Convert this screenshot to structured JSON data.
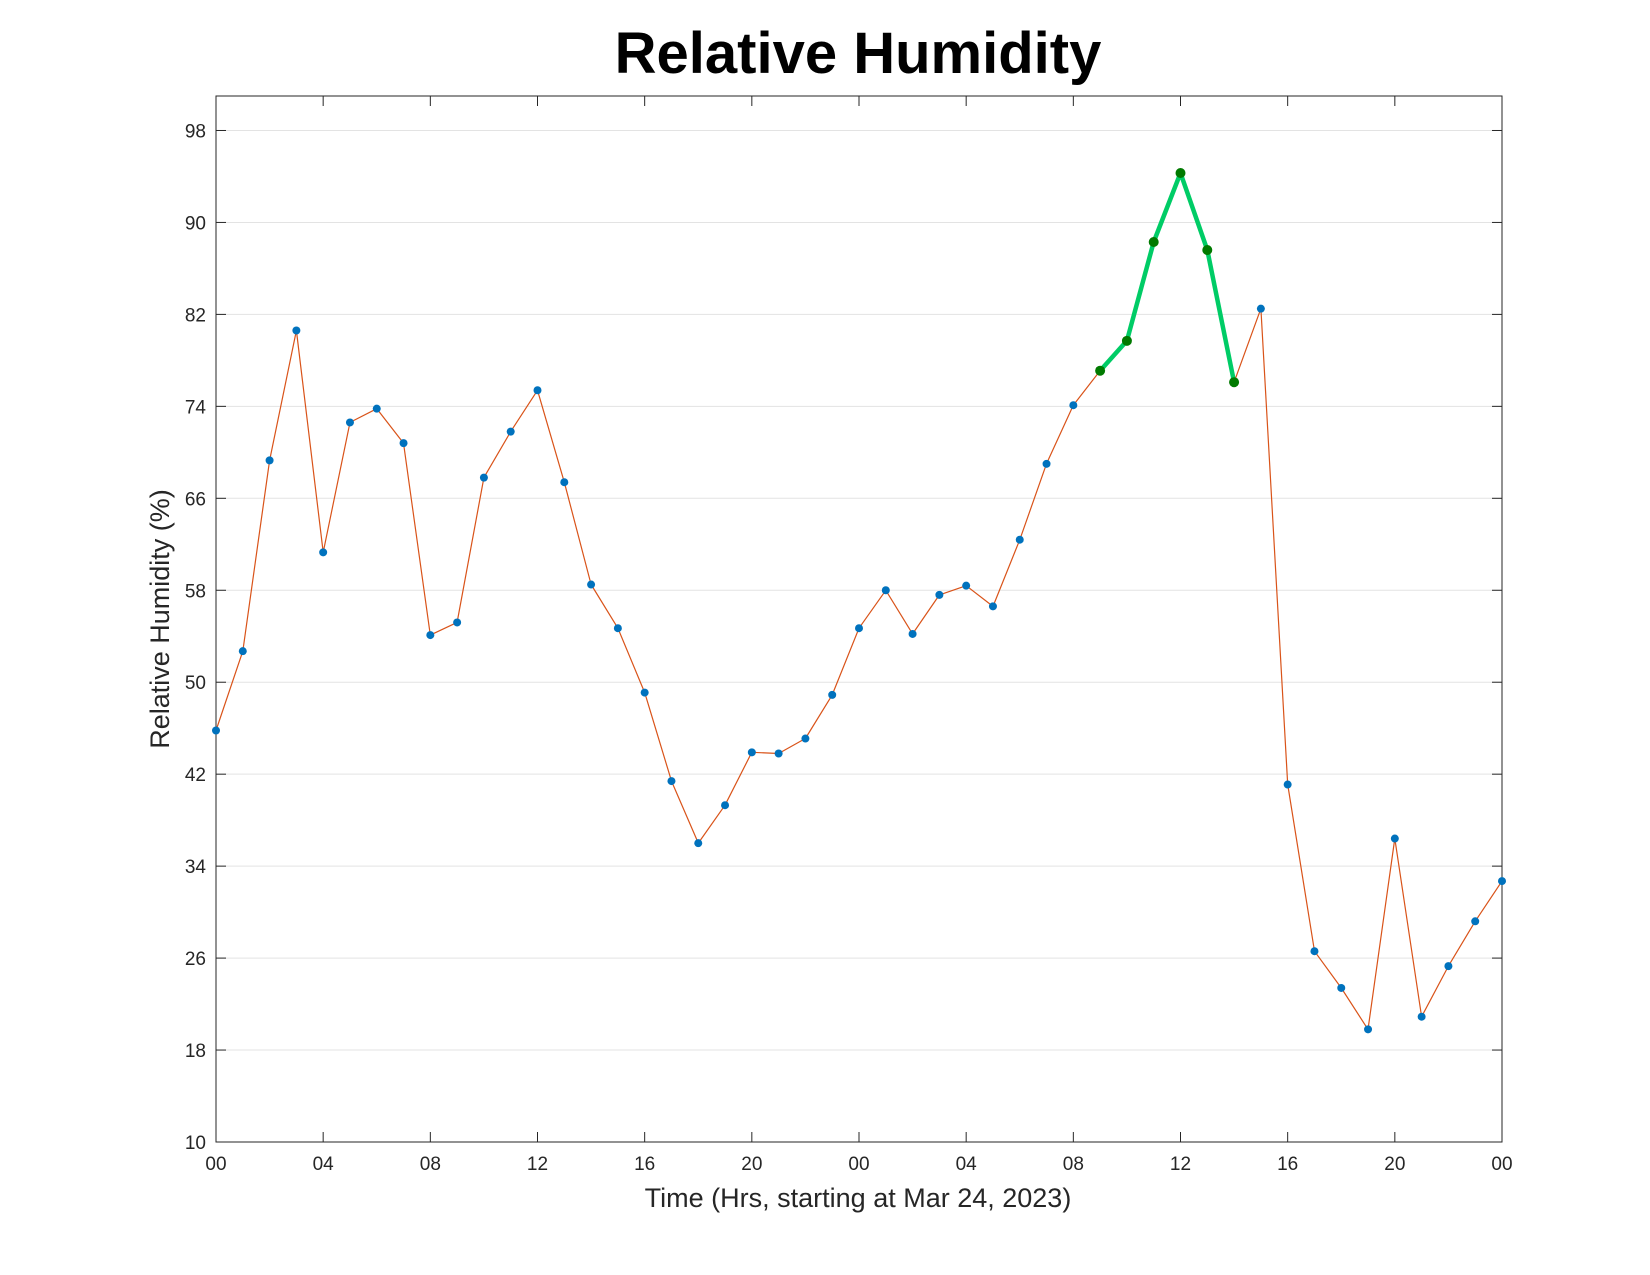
{
  "chart_data": {
    "type": "line",
    "title": "Relative Humidity",
    "xlabel": "Time (Hrs, starting at Mar 24, 2023)",
    "ylabel": "Relative Humidity (%)",
    "ylim": [
      10,
      101
    ],
    "yticks": [
      10,
      18,
      26,
      34,
      42,
      50,
      58,
      66,
      74,
      82,
      90,
      98
    ],
    "xlim_hours": [
      0,
      48
    ],
    "xticks_hours": [
      0,
      4,
      8,
      12,
      16,
      20,
      24,
      28,
      32,
      36,
      40,
      44,
      48
    ],
    "xtick_labels": [
      "00",
      "04",
      "08",
      "12",
      "16",
      "20",
      "00",
      "04",
      "08",
      "12",
      "16",
      "20",
      "00"
    ],
    "grid": "horizontal",
    "series": [
      {
        "role": "all-readings",
        "line_color": "#d95319",
        "marker_color": "#0072bd",
        "x_hours": [
          0,
          1,
          2,
          3,
          4,
          5,
          6,
          7,
          8,
          9,
          10,
          11,
          12,
          13,
          14,
          15,
          16,
          17,
          18,
          19,
          20,
          21,
          22,
          23,
          24,
          25,
          26,
          27,
          28,
          29,
          30,
          31,
          32,
          33,
          34,
          35,
          36,
          37,
          38,
          39,
          40,
          41,
          42,
          43,
          44,
          45,
          46,
          47,
          48
        ],
        "values": [
          45.8,
          52.7,
          69.3,
          80.6,
          61.3,
          72.6,
          73.8,
          70.8,
          54.1,
          55.2,
          67.8,
          71.8,
          75.4,
          67.4,
          58.5,
          54.7,
          49.1,
          41.4,
          36.0,
          39.3,
          43.9,
          43.8,
          45.1,
          48.9,
          54.7,
          58.0,
          54.2,
          57.6,
          58.4,
          56.6,
          62.4,
          69.0,
          74.1,
          77.1,
          79.7,
          88.3,
          94.3,
          87.6,
          76.1,
          82.5,
          41.1,
          26.6,
          23.4,
          19.8,
          36.4,
          20.9,
          25.3,
          29.2,
          32.7
        ]
      },
      {
        "role": "highlighted",
        "line_color": "#00cc66",
        "marker_color": "#007a00",
        "x_hours": [
          33,
          34,
          35,
          36,
          37,
          38
        ],
        "values": [
          77.1,
          79.7,
          88.3,
          94.3,
          87.6,
          76.1
        ]
      }
    ]
  }
}
